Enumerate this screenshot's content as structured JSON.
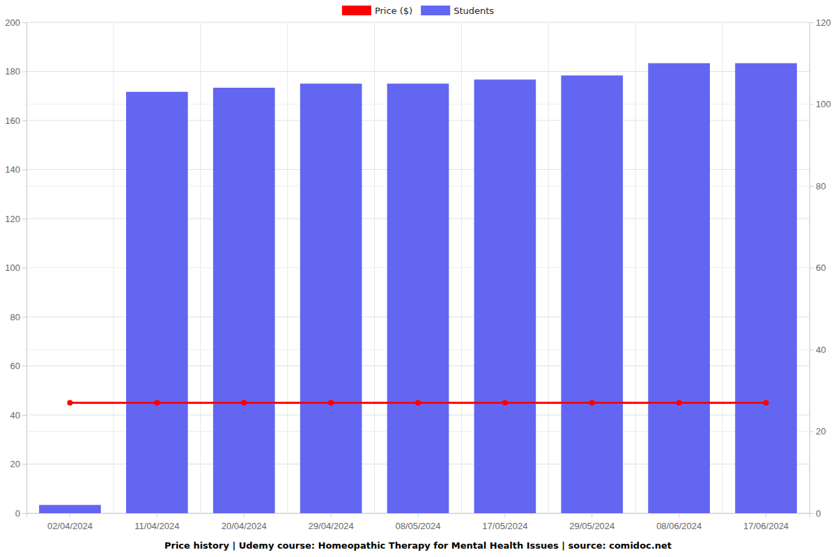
{
  "chart_data": {
    "type": "bar",
    "title": "Price history | Udemy course: Homeopathic Therapy for Mental Health Issues | source: comidoc.net",
    "categories": [
      "02/04/2024",
      "11/04/2024",
      "20/04/2024",
      "29/04/2024",
      "08/05/2024",
      "17/05/2024",
      "29/05/2024",
      "08/06/2024",
      "17/06/2024"
    ],
    "series": [
      {
        "name": "Price ($)",
        "type": "line",
        "color": "#ff0000",
        "marker": "circle",
        "values": [
          45,
          45,
          45,
          45,
          45,
          45,
          45,
          45,
          45
        ]
      },
      {
        "name": "Students",
        "type": "bar",
        "color": "#6366f1",
        "axis": "y2",
        "values": [
          2,
          103,
          104,
          105,
          105,
          106,
          107,
          110,
          110
        ]
      }
    ],
    "ylim": [
      0,
      200
    ],
    "yticks": [
      0,
      20,
      40,
      60,
      80,
      100,
      120,
      140,
      160,
      180,
      200
    ],
    "y2lim": [
      0,
      120
    ],
    "y2ticks": [
      0,
      20,
      40,
      60,
      80,
      100,
      120
    ],
    "grid": true,
    "legend": "top"
  }
}
